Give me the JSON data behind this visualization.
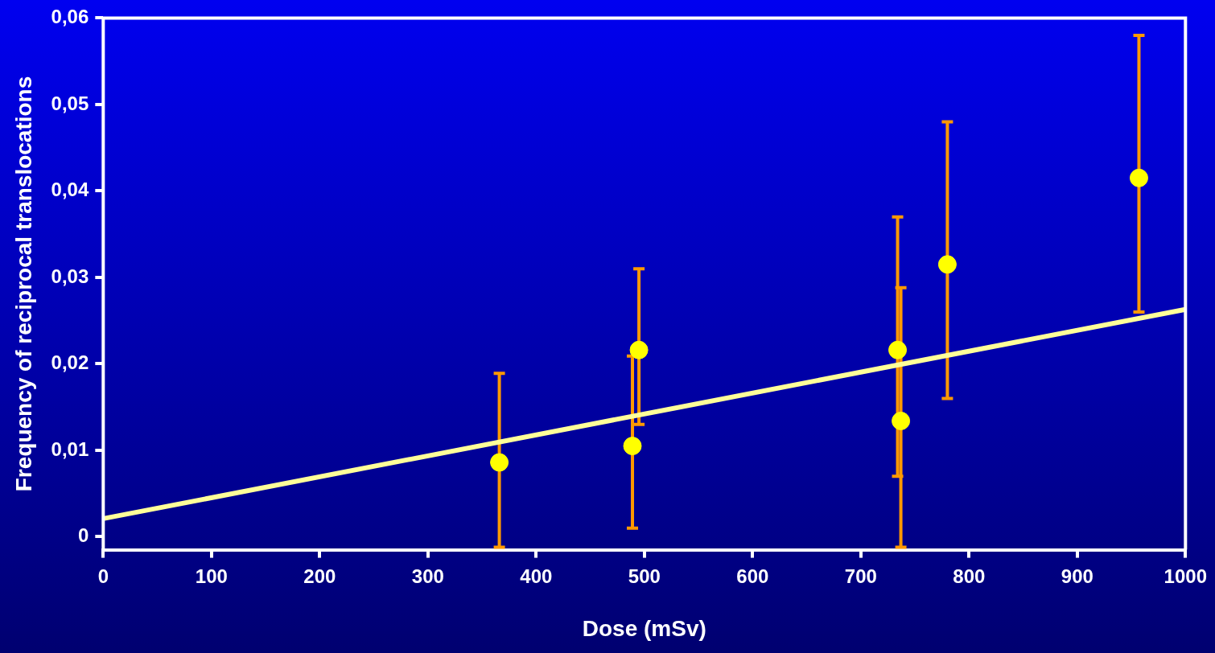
{
  "chart_data": {
    "type": "scatter",
    "xlabel": "Dose (mSv)",
    "ylabel": "Frequency of reciprocal translocations",
    "xlim": [
      0,
      1000
    ],
    "xticks": [
      0,
      100,
      200,
      300,
      400,
      500,
      600,
      700,
      800,
      900,
      1000
    ],
    "ylim": [
      -0.0015,
      0.06
    ],
    "yticks": [
      0,
      {
        "value": 0.01,
        "label": "0,01"
      },
      {
        "value": 0.02,
        "label": "0,02"
      },
      {
        "value": 0.03,
        "label": "0,03"
      },
      {
        "value": 0.04,
        "label": "0,04"
      },
      {
        "value": 0.05,
        "label": "0,05"
      },
      {
        "value": 0.06,
        "label": "0,06"
      }
    ],
    "grid": false,
    "legend": false,
    "series": [
      {
        "marker": "circle",
        "color": "#ff9900",
        "colors": [
          "#ffff00",
          "#ffff00",
          "#ffff00",
          "#ffff00",
          "#ffff00",
          "#ffff00",
          "#ffff00"
        ],
        "x": [
          366,
          489,
          495,
          734,
          737,
          780,
          957
        ],
        "values": [
          0.0086,
          0.0105,
          0.0216,
          0.0216,
          0.0134,
          0.0315,
          0.0415
        ],
        "errors": [
          [
            -0.0012,
            0.0189
          ],
          [
            0.001,
            0.0209
          ],
          [
            0.013,
            0.031
          ],
          [
            0.007,
            0.037
          ],
          [
            -0.0012,
            0.0288
          ],
          [
            0.016,
            0.048
          ],
          [
            0.026,
            0.058
          ]
        ]
      },
      {
        "type": "line",
        "color": "#ffff99",
        "x": [
          0,
          1000
        ],
        "values": [
          0.0021,
          0.0263
        ]
      }
    ]
  }
}
